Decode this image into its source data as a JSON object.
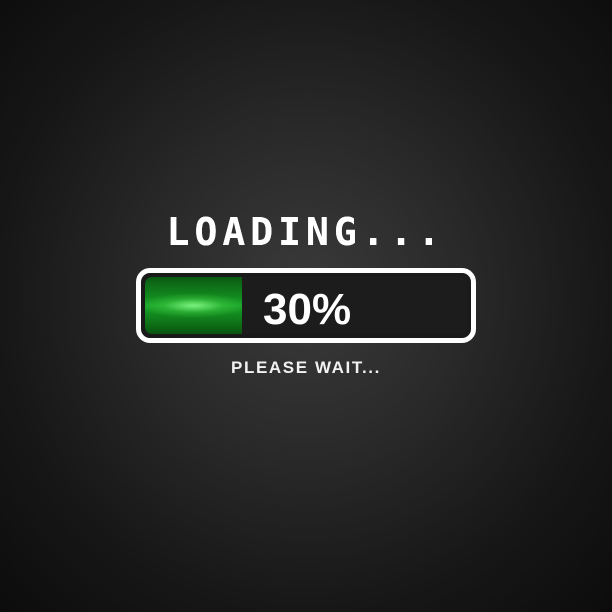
{
  "loader": {
    "title": "LOADING...",
    "progress_label": "30%",
    "progress_fraction": 0.3,
    "subtitle": "PLEASE WAIT..."
  },
  "colors": {
    "background": "#1c1c1c",
    "bar_border": "#ffffff",
    "bar_fill": "#1aa52a",
    "text": "#ffffff"
  }
}
